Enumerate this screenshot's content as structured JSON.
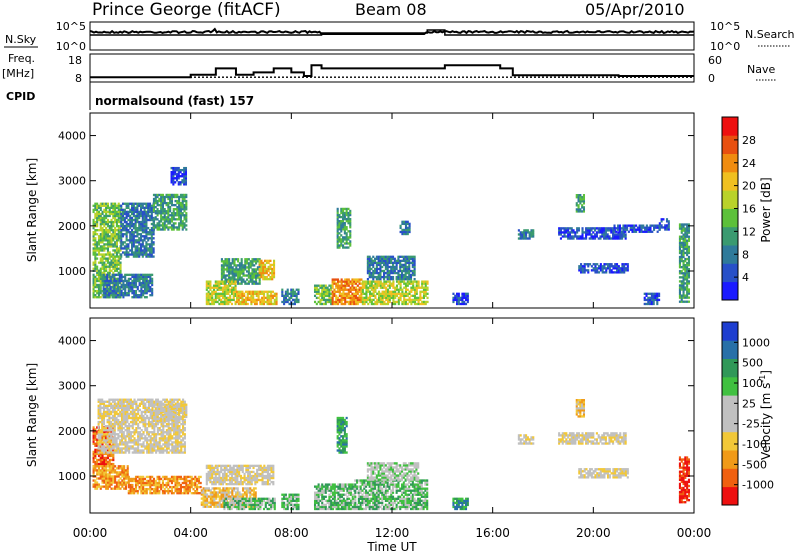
{
  "header": {
    "station": "Prince George (fitACF)",
    "beam": "Beam 08",
    "date": "05/Apr/2010"
  },
  "status_panels": {
    "nsky_label": "N.Sky",
    "nsky_ticks": [
      "10^5",
      "10^0"
    ],
    "nsearch_label": "N.Search",
    "nsearch_ticks": [
      "10^5",
      "10^0"
    ],
    "freq_label": "Freq.",
    "freq_unit": "[MHz]",
    "freq_ticks": [
      "18",
      "8"
    ],
    "nave_label": "Nave",
    "nave_ticks": [
      "60",
      "0"
    ],
    "cpid_label": "CPID",
    "cpid_text": "normalsound (fast) 157",
    "freq_series": {
      "hours": [
        0,
        3.5,
        4.0,
        5.0,
        5.8,
        6.5,
        7.3,
        8.0,
        8.5,
        8.8,
        9.2,
        13.4,
        14.1,
        16.3,
        16.8,
        21.0,
        24.0
      ],
      "mhz": [
        10,
        10,
        11,
        13.7,
        11,
        12,
        13.7,
        12,
        10.5,
        15,
        13.7,
        13.7,
        15,
        13.7,
        10.8,
        10.5,
        10.5
      ]
    },
    "nave_level": 12
  },
  "chart_data": [
    {
      "type": "heatmap",
      "name": "power",
      "ylabel": "Slant Range [km]",
      "xlabel": "",
      "ylim": [
        180,
        4500
      ],
      "xlim": [
        0,
        24
      ],
      "yticks": [
        1000,
        2000,
        3000,
        4000
      ],
      "xticks": [
        0,
        4,
        8,
        12,
        16,
        20,
        24
      ],
      "colorbar": {
        "label": "Power [dB]",
        "range": [
          0,
          32
        ],
        "ticks": [
          "4",
          "8",
          "12",
          "16",
          "20",
          "24",
          "28"
        ],
        "colors": [
          "#1a1aff",
          "#2850c8",
          "#2f7a9a",
          "#3a9a70",
          "#5cc03a",
          "#b9d22a",
          "#f0c020",
          "#f08c10",
          "#e85010",
          "#ee1010"
        ]
      },
      "regions": [
        {
          "h0": 0.1,
          "h1": 1.2,
          "r0": 400,
          "r1": 2500,
          "level": 4
        },
        {
          "h0": 1.2,
          "h1": 2.5,
          "r0": 1300,
          "r1": 2500,
          "level": 2
        },
        {
          "h0": 2.5,
          "h1": 3.8,
          "r0": 1900,
          "r1": 2700,
          "level": 3
        },
        {
          "h0": 0.5,
          "h1": 2.5,
          "r0": 400,
          "r1": 900,
          "level": 2
        },
        {
          "h0": 3.2,
          "h1": 3.8,
          "r0": 2900,
          "r1": 3300,
          "level": 1
        },
        {
          "h0": 5.2,
          "h1": 6.7,
          "r0": 700,
          "r1": 1250,
          "level": 3
        },
        {
          "h0": 6.7,
          "h1": 7.3,
          "r0": 800,
          "r1": 1250,
          "level": 6
        },
        {
          "h0": 4.6,
          "h1": 5.8,
          "r0": 250,
          "r1": 750,
          "level": 5
        },
        {
          "h0": 5.8,
          "h1": 7.4,
          "r0": 250,
          "r1": 550,
          "level": 6
        },
        {
          "h0": 7.6,
          "h1": 8.3,
          "r0": 250,
          "r1": 600,
          "level": 2
        },
        {
          "h0": 8.9,
          "h1": 9.6,
          "r0": 250,
          "r1": 700,
          "level": 4
        },
        {
          "h0": 9.6,
          "h1": 10.8,
          "r0": 250,
          "r1": 800,
          "level": 7
        },
        {
          "h0": 10.8,
          "h1": 13.4,
          "r0": 250,
          "r1": 750,
          "level": 5
        },
        {
          "h0": 11.0,
          "h1": 12.9,
          "r0": 800,
          "r1": 1300,
          "level": 2
        },
        {
          "h0": 9.8,
          "h1": 10.3,
          "r0": 1500,
          "r1": 2400,
          "level": 3
        },
        {
          "h0": 12.3,
          "h1": 12.7,
          "r0": 1800,
          "r1": 2100,
          "level": 2
        },
        {
          "h0": 14.4,
          "h1": 15.0,
          "r0": 250,
          "r1": 500,
          "level": 1
        },
        {
          "h0": 17.0,
          "h1": 17.6,
          "r0": 1700,
          "r1": 1900,
          "level": 2
        },
        {
          "h0": 18.6,
          "h1": 21.3,
          "r0": 1700,
          "r1": 1950,
          "level": 1
        },
        {
          "h0": 20.8,
          "h1": 22.6,
          "r0": 1850,
          "r1": 2000,
          "level": 1
        },
        {
          "h0": 19.4,
          "h1": 21.4,
          "r0": 950,
          "r1": 1150,
          "level": 1
        },
        {
          "h0": 22.6,
          "h1": 23.0,
          "r0": 1900,
          "r1": 2150,
          "level": 1
        },
        {
          "h0": 23.4,
          "h1": 23.8,
          "r0": 300,
          "r1": 2050,
          "level": 3
        },
        {
          "h0": 22.0,
          "h1": 22.6,
          "r0": 250,
          "r1": 500,
          "level": 1
        },
        {
          "h0": 19.3,
          "h1": 19.6,
          "r0": 2300,
          "r1": 2700,
          "level": 3
        }
      ]
    },
    {
      "type": "heatmap",
      "name": "velocity",
      "ylabel": "Slant Range [km]",
      "xlabel": "Time UT",
      "ylim": [
        180,
        4500
      ],
      "xlim": [
        0,
        24
      ],
      "yticks": [
        1000,
        2000,
        3000,
        4000
      ],
      "xticks": [
        0,
        4,
        8,
        12,
        16,
        20,
        24
      ],
      "xtick_labels": [
        "00:00",
        "04:00",
        "08:00",
        "12:00",
        "16:00",
        "20:00",
        "00:00"
      ],
      "colorbar": {
        "label": "Velocity [m s^-1]",
        "units_main": "Velocity [m s",
        "units_sup": "-1",
        "units_end": "]",
        "ticks": [
          "-1000",
          "-500",
          "-100",
          "-25",
          "25",
          "100",
          "500",
          "1000"
        ],
        "colors": [
          "#ee1010",
          "#f06010",
          "#f09a18",
          "#f2c838",
          "#c0c0c0",
          "#c0c0c0",
          "#40c040",
          "#309858",
          "#2870a8",
          "#1e3ed0"
        ]
      },
      "regions": [
        {
          "h0": 0.1,
          "h1": 0.9,
          "r0": 1200,
          "r1": 2100,
          "level": 1
        },
        {
          "h0": 0.1,
          "h1": 1.5,
          "r0": 700,
          "r1": 1200,
          "level": 2
        },
        {
          "h0": 1.5,
          "h1": 4.4,
          "r0": 600,
          "r1": 1000,
          "level": 2
        },
        {
          "h0": 0.3,
          "h1": 3.8,
          "r0": 1500,
          "r1": 2700,
          "level": 4
        },
        {
          "h0": 2.5,
          "h1": 3.8,
          "r0": 2200,
          "r1": 2600,
          "level": 4
        },
        {
          "h0": 4.4,
          "h1": 6.6,
          "r0": 300,
          "r1": 750,
          "level": 3
        },
        {
          "h0": 4.6,
          "h1": 7.3,
          "r0": 800,
          "r1": 1250,
          "level": 4
        },
        {
          "h0": 5.3,
          "h1": 7.3,
          "r0": 250,
          "r1": 500,
          "level": 6
        },
        {
          "h0": 7.6,
          "h1": 8.3,
          "r0": 250,
          "r1": 600,
          "level": 6
        },
        {
          "h0": 8.9,
          "h1": 10.5,
          "r0": 250,
          "r1": 800,
          "level": 6
        },
        {
          "h0": 10.5,
          "h1": 13.4,
          "r0": 250,
          "r1": 900,
          "level": 6
        },
        {
          "h0": 11.0,
          "h1": 13.0,
          "r0": 900,
          "r1": 1300,
          "level": 5
        },
        {
          "h0": 9.8,
          "h1": 10.2,
          "r0": 1500,
          "r1": 2300,
          "level": 7
        },
        {
          "h0": 14.4,
          "h1": 15.0,
          "r0": 250,
          "r1": 500,
          "level": 7
        },
        {
          "h0": 17.0,
          "h1": 17.6,
          "r0": 1700,
          "r1": 1900,
          "level": 4
        },
        {
          "h0": 18.6,
          "h1": 21.3,
          "r0": 1700,
          "r1": 1950,
          "level": 4
        },
        {
          "h0": 19.4,
          "h1": 21.4,
          "r0": 950,
          "r1": 1150,
          "level": 4
        },
        {
          "h0": 19.3,
          "h1": 19.6,
          "r0": 2300,
          "r1": 2700,
          "level": 3
        },
        {
          "h0": 23.4,
          "h1": 23.8,
          "r0": 400,
          "r1": 1400,
          "level": 0
        }
      ]
    }
  ]
}
